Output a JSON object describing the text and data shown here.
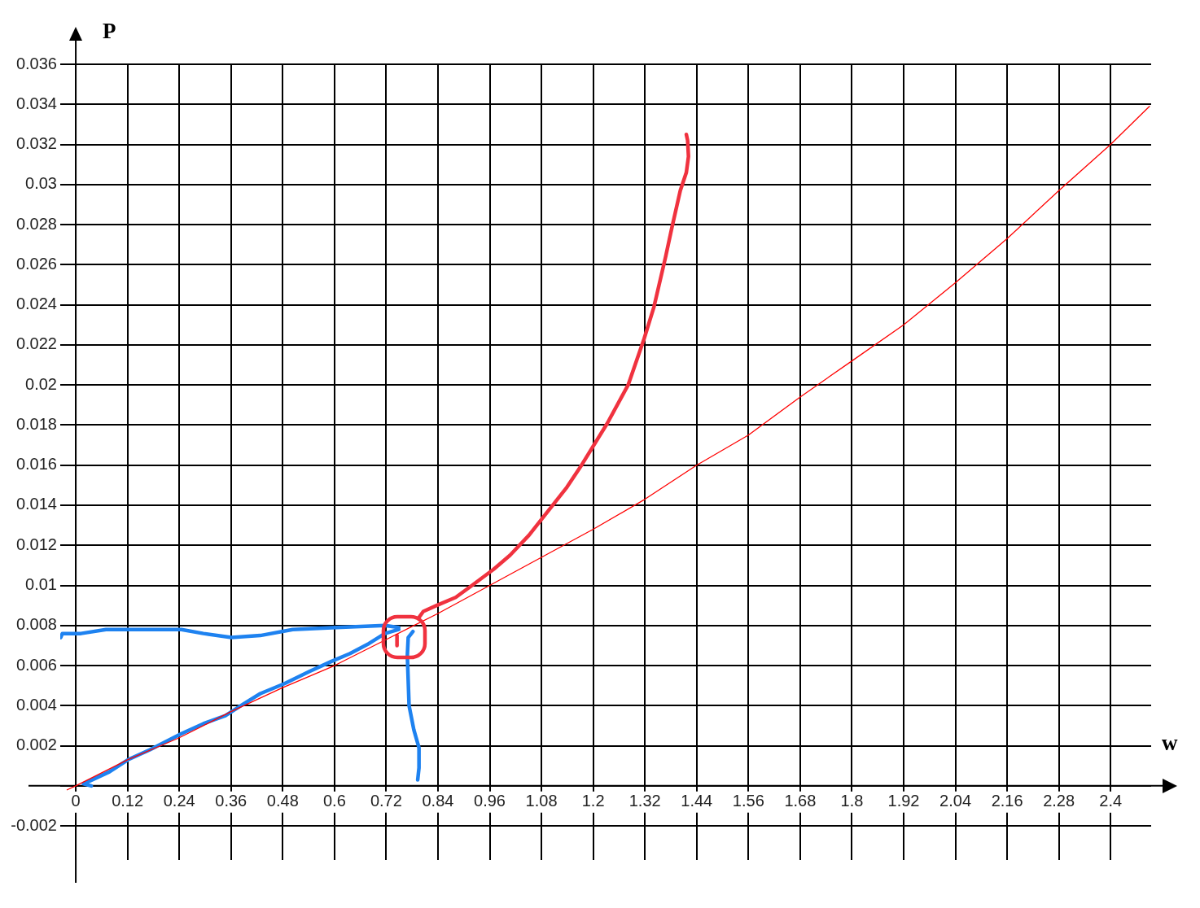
{
  "chart_data": {
    "type": "line",
    "xlabel": "w",
    "ylabel": "P",
    "xlim": [
      -0.036,
      2.494
    ],
    "ylim": [
      -0.0037,
      0.036
    ],
    "xticks": [
      0,
      0.12,
      0.24,
      0.36,
      0.48,
      0.6,
      0.72,
      0.84,
      0.96,
      1.08,
      1.2,
      1.32,
      1.44,
      1.56,
      1.68,
      1.8,
      1.92,
      2.04,
      2.16,
      2.28,
      2.4
    ],
    "yticks": [
      -0.002,
      {
        "value": 0,
        "label": null
      },
      0.002,
      0.004,
      0.006,
      0.008,
      0.01,
      0.012,
      0.014,
      0.016,
      0.018,
      0.02,
      0.022,
      0.024,
      0.026,
      0.028,
      0.03,
      0.032,
      0.034,
      0.036
    ],
    "grid": true,
    "legend": false,
    "marker": "none",
    "line_style": "solid",
    "series": [
      {
        "color": "#ff0000",
        "x": [
          -0.02,
          0,
          0.12,
          0.24,
          0.36,
          0.48,
          0.6,
          0.72,
          0.84,
          0.96,
          1.08,
          1.2,
          1.32,
          1.44,
          1.56,
          1.68,
          1.8,
          1.92,
          2.04,
          2.16,
          2.28,
          2.4,
          2.49
        ],
        "values": [
          -0.0002,
          0,
          0.0013,
          0.0024,
          0.0037,
          0.0049,
          0.006,
          0.0073,
          0.0086,
          0.01,
          0.0114,
          0.0128,
          0.0143,
          0.016,
          0.0175,
          0.0194,
          0.0212,
          0.023,
          0.0251,
          0.0273,
          0.0297,
          0.032,
          0.0339
        ]
      },
      {
        "color": "#f0323f",
        "x": [
          0.796,
          0.806,
          0.837,
          0.881,
          0.919,
          0.969,
          1.007,
          1.051,
          1.139,
          1.173,
          1.233,
          1.281,
          1.318,
          1.341,
          1.368,
          1.382,
          1.402,
          1.416,
          1.421,
          1.419,
          1.416
        ],
        "values": [
          0.0084,
          0.0087,
          0.009,
          0.0094,
          0.01,
          0.0108,
          0.0115,
          0.0125,
          0.0149,
          0.016,
          0.0181,
          0.02,
          0.0223,
          0.0239,
          0.0264,
          0.0278,
          0.0297,
          0.0306,
          0.0314,
          0.0322,
          0.0325
        ]
      },
      {
        "color": "#f0323f",
        "x": [
          0.745,
          0.745
        ],
        "values": [
          0.0075,
          0.007
        ]
      },
      {
        "color": "#1e82f0",
        "x": [
          0.036,
          0.018,
          0.078,
          0.121,
          0.172,
          0.245,
          0.296,
          0.347,
          0.39,
          0.428,
          0.484,
          0.541,
          0.592,
          0.636,
          0.68,
          0.717,
          0.749
        ],
        "values": [
          0,
          0.0001,
          0.0007,
          0.0013,
          0.0018,
          0.0026,
          0.0031,
          0.0035,
          0.0041,
          0.0046,
          0.0051,
          0.0057,
          0.0062,
          0.0066,
          0.0071,
          0.0076,
          0.0078
        ]
      },
      {
        "color": "#1e82f0",
        "x": [
          -0.035,
          -0.031,
          0.012,
          0.07,
          0.245,
          0.296,
          0.361,
          0.428,
          0.503,
          0.604,
          0.717,
          0.749
        ],
        "values": [
          0.0074,
          0.0076,
          0.0076,
          0.0078,
          0.0078,
          0.0076,
          0.0074,
          0.0075,
          0.0078,
          0.0079,
          0.008,
          0.0079
        ]
      },
      {
        "color": "#1e82f0",
        "x": [
          0.782,
          0.771,
          0.769,
          0.773,
          0.784,
          0.796,
          0.796,
          0.793
        ],
        "values": [
          0.0077,
          0.0074,
          0.0065,
          0.004,
          0.0028,
          0.0019,
          0.0009,
          0.0003
        ]
      }
    ]
  }
}
